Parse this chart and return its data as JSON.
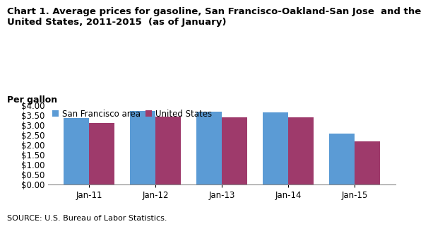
{
  "title": "Chart 1. Average prices for gasoline, San Francisco-Oakland-San Jose  and the\nUnited States, 2011-2015  (as of January)",
  "per_gallon": "Per gallon",
  "source": "SOURCE: U.S. Bureau of Labor Statistics.",
  "categories": [
    "Jan-11",
    "Jan-12",
    "Jan-13",
    "Jan-14",
    "Jan-15"
  ],
  "sf_values": [
    3.35,
    3.72,
    3.65,
    3.63,
    2.57
  ],
  "us_values": [
    3.11,
    3.43,
    3.39,
    3.38,
    2.16
  ],
  "sf_color": "#5B9BD5",
  "us_color": "#9E3A6B",
  "sf_label": "San Francisco area",
  "us_label": "United States",
  "ylim": [
    0.0,
    4.0
  ],
  "yticks": [
    0.0,
    0.5,
    1.0,
    1.5,
    2.0,
    2.5,
    3.0,
    3.5,
    4.0
  ],
  "background_color": "#ffffff",
  "title_fontsize": 9.5,
  "per_gallon_fontsize": 9,
  "tick_fontsize": 8.5,
  "legend_fontsize": 8.5,
  "source_fontsize": 8
}
